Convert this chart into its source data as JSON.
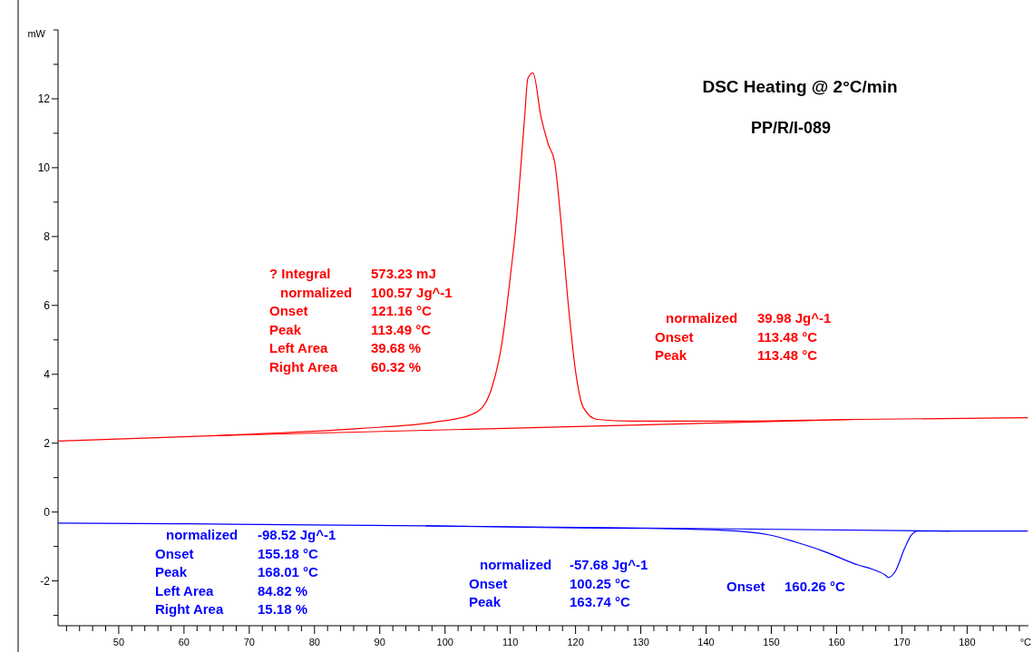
{
  "chart_data": {
    "type": "line",
    "title": "DSC Heating @ 2°C/min",
    "subtitle": "PP/R/I-089",
    "xlabel": "°C",
    "ylabel": "mW",
    "xlim": [
      40.7,
      189.4
    ],
    "ylim": [
      -3.3,
      14
    ],
    "xticks": [
      {
        "value": 42,
        "label": null
      },
      {
        "value": 44,
        "label": null
      },
      {
        "value": 46,
        "label": null
      },
      {
        "value": 48,
        "label": null
      },
      50,
      {
        "value": 52,
        "label": null
      },
      {
        "value": 54,
        "label": null
      },
      {
        "value": 56,
        "label": null
      },
      {
        "value": 58,
        "label": null
      },
      60,
      {
        "value": 62,
        "label": null
      },
      {
        "value": 64,
        "label": null
      },
      {
        "value": 66,
        "label": null
      },
      {
        "value": 68,
        "label": null
      },
      70,
      {
        "value": 72,
        "label": null
      },
      {
        "value": 74,
        "label": null
      },
      {
        "value": 76,
        "label": null
      },
      {
        "value": 78,
        "label": null
      },
      80,
      {
        "value": 82,
        "label": null
      },
      {
        "value": 84,
        "label": null
      },
      {
        "value": 86,
        "label": null
      },
      {
        "value": 88,
        "label": null
      },
      90,
      {
        "value": 92,
        "label": null
      },
      {
        "value": 94,
        "label": null
      },
      {
        "value": 96,
        "label": null
      },
      {
        "value": 98,
        "label": null
      },
      100,
      {
        "value": 102,
        "label": null
      },
      {
        "value": 104,
        "label": null
      },
      {
        "value": 106,
        "label": null
      },
      {
        "value": 108,
        "label": null
      },
      110,
      {
        "value": 112,
        "label": null
      },
      {
        "value": 114,
        "label": null
      },
      {
        "value": 116,
        "label": null
      },
      {
        "value": 118,
        "label": null
      },
      120,
      {
        "value": 122,
        "label": null
      },
      {
        "value": 124,
        "label": null
      },
      {
        "value": 126,
        "label": null
      },
      {
        "value": 128,
        "label": null
      },
      130,
      {
        "value": 132,
        "label": null
      },
      {
        "value": 134,
        "label": null
      },
      {
        "value": 136,
        "label": null
      },
      {
        "value": 138,
        "label": null
      },
      140,
      {
        "value": 142,
        "label": null
      },
      {
        "value": 144,
        "label": null
      },
      {
        "value": 146,
        "label": null
      },
      {
        "value": 148,
        "label": null
      },
      150,
      {
        "value": 152,
        "label": null
      },
      {
        "value": 154,
        "label": null
      },
      {
        "value": 156,
        "label": null
      },
      {
        "value": 158,
        "label": null
      },
      160,
      {
        "value": 162,
        "label": null
      },
      {
        "value": 164,
        "label": null
      },
      {
        "value": 166,
        "label": null
      },
      {
        "value": 168,
        "label": null
      },
      170,
      {
        "value": 172,
        "label": null
      },
      {
        "value": 174,
        "label": null
      },
      {
        "value": 176,
        "label": null
      },
      {
        "value": 178,
        "label": null
      },
      180,
      {
        "value": 182,
        "label": null
      },
      {
        "value": 184,
        "label": null
      },
      {
        "value": 186,
        "label": null
      },
      {
        "value": 188,
        "label": null
      }
    ],
    "yticks": [
      {
        "value": -3,
        "label": null
      },
      -2,
      {
        "value": -1,
        "label": null
      },
      0,
      {
        "value": 1,
        "label": null
      },
      2,
      {
        "value": 3,
        "label": null
      },
      4,
      {
        "value": 5,
        "label": null
      },
      6,
      {
        "value": 7,
        "label": null
      },
      8,
      {
        "value": 9,
        "label": null
      },
      10,
      {
        "value": 11,
        "label": null
      },
      12,
      {
        "value": 13,
        "label": null
      },
      {
        "value": 14,
        "label": null
      }
    ],
    "grid": false,
    "marker": "none",
    "line_style": "solid",
    "series": [
      {
        "color": "#ff0000",
        "x": [
          40.7,
          65.1,
          87.3,
          98.3,
          103.9,
          106,
          107.3,
          108.7,
          110.1,
          110.8,
          111.5,
          112.2,
          112.7,
          113.49,
          114.7,
          115.8,
          116.8,
          117.7,
          118.8,
          120,
          121.2,
          123.3,
          128.8,
          142.7,
          162.9,
          189.3
        ],
        "values": [
          2.06,
          2.22,
          2.43,
          2.61,
          2.82,
          3.11,
          3.69,
          4.88,
          6.99,
          8.18,
          9.76,
          11.48,
          12.6,
          12.75,
          11.48,
          10.69,
          10.16,
          8.58,
          6.2,
          4.09,
          3.03,
          2.69,
          2.64,
          2.64,
          2.69,
          2.74
        ]
      },
      {
        "color": "#ff0000",
        "x": [
          65.1,
          162.9
        ],
        "values": [
          2.22,
          2.69
        ]
      },
      {
        "color": "#0000ff",
        "x": [
          40.7,
          59.6,
          97,
          115,
          128.8,
          142.7,
          149.6,
          153.7,
          157.9,
          160,
          163.2,
          165.5,
          167.6,
          167.9,
          169,
          170.4,
          171.5,
          172.4,
          177.3,
          189.3
        ],
        "values": [
          -0.32,
          -0.34,
          -0.4,
          -0.45,
          -0.47,
          -0.53,
          -0.66,
          -0.87,
          -1.13,
          -1.29,
          -1.53,
          -1.66,
          -1.85,
          -1.9,
          -1.72,
          -1.06,
          -0.66,
          -0.55,
          -0.55,
          -0.55
        ]
      },
      {
        "color": "#0000ff",
        "x": [
          97,
          177.3
        ],
        "values": [
          -0.4,
          -0.55
        ]
      }
    ],
    "annotations": [
      "? Integral\t573.23 mJ\nnormalized\t100.57 Jg^-1\nOnset\t121.16 °C\nPeak\t113.49 °C\nLeft Area\t39.68 %\nRight Area\t60.32 %",
      "normalized\t39.98 Jg^-1\nOnset\t113.48 °C\nPeak\t113.48 °C",
      "normalized\t-98.52 Jg^-1\nOnset\t155.18 °C\nPeak\t168.01 °C\nLeft Area\t84.82 %\nRight Area\t15.18 %",
      "normalized\t-57.68 Jg^-1\nOnset\t100.25 °C\nPeak\t163.74 °C",
      "Onset\t160.26 °C"
    ]
  }
}
